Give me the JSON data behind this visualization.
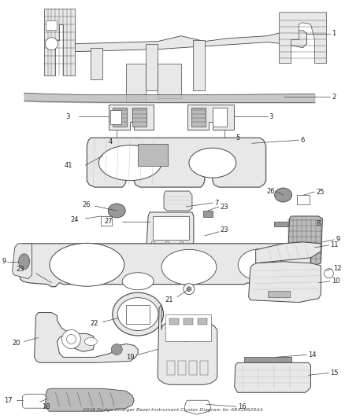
{
  "title": "2018 Dodge Charger Bezel-Instrument Cluster Diagram for 68416829AA",
  "bg_color": "#ffffff",
  "line_color": "#444444",
  "label_color": "#222222",
  "fig_width": 4.38,
  "fig_height": 5.33,
  "dpi": 100,
  "label_fontsize": 6.0,
  "leader_lw": 0.5,
  "part_lw": 0.7,
  "fill_light": "#e8e8e8",
  "fill_dark": "#999999",
  "fill_mid": "#bbbbbb"
}
